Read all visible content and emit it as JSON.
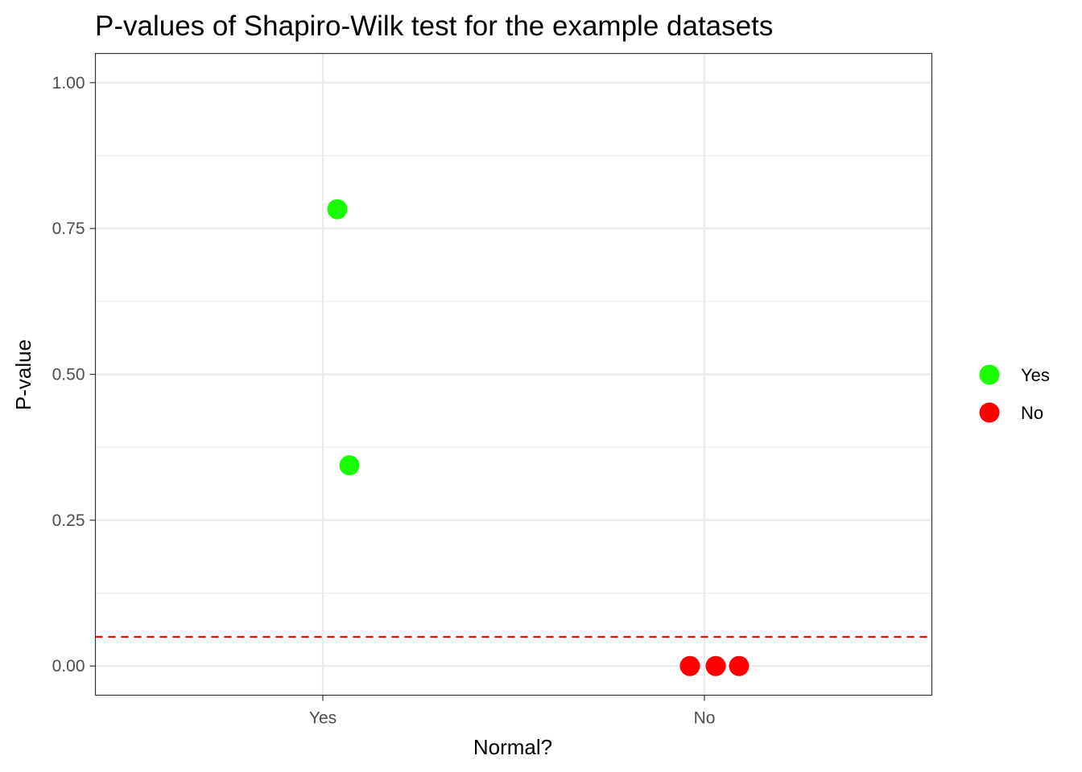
{
  "chart_data": {
    "type": "scatter",
    "title": "P-values of Shapiro-Wilk test for the example datasets",
    "xlabel": "Normal?",
    "ylabel": "P-value",
    "categories": [
      "Yes",
      "No"
    ],
    "y_ticks": [
      0,
      0.25,
      0.5,
      0.75,
      1.0
    ],
    "y_tick_labels": [
      "0.00",
      "0.25",
      "0.50",
      "0.75",
      "1.00"
    ],
    "ylim": [
      -0.05,
      1.05
    ],
    "grid": true,
    "threshold": {
      "value": 0.05,
      "color": "#ff0000",
      "style": "dashed"
    },
    "legend": {
      "placement": "right",
      "entries": [
        {
          "label": "Yes",
          "color": "#1aff00"
        },
        {
          "label": "No",
          "color": "#ff0000"
        }
      ]
    },
    "series": [
      {
        "name": "Yes",
        "color": "#1aff00",
        "points": [
          {
            "category": "Yes",
            "y": 0.783
          },
          {
            "category": "Yes",
            "y": 0.344
          }
        ]
      },
      {
        "name": "No",
        "color": "#ff0000",
        "points": [
          {
            "category": "No",
            "y": 0.0
          },
          {
            "category": "No",
            "y": 0.0
          },
          {
            "category": "No",
            "y": 0.0
          }
        ]
      }
    ]
  }
}
